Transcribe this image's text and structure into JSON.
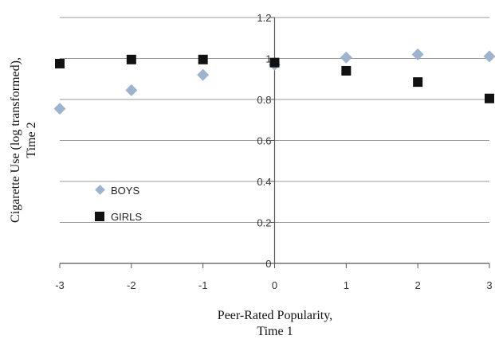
{
  "chart_data": {
    "type": "scatter",
    "xlabel": [
      "Peer-Rated Popularity,",
      "Time 1"
    ],
    "ylabel": [
      "Cigarette Use (log transformed),",
      "Time 2"
    ],
    "xlim": [
      -3,
      3
    ],
    "ylim": [
      0,
      1.2
    ],
    "xticks": [
      "-3",
      "-2",
      "-1",
      "0",
      "1",
      "2",
      "3"
    ],
    "yticks": [
      "0",
      "0.2",
      "0.4",
      "0.6",
      "0.8",
      "1",
      "1.2"
    ],
    "grid": "horizontal",
    "legend_position": "left-center",
    "series": [
      {
        "name": "BOYS",
        "marker": "diamond",
        "color": "#9DB3CE",
        "x": [
          -3,
          -2,
          -1,
          0,
          1,
          2,
          3
        ],
        "y": [
          0.755,
          0.845,
          0.92,
          0.97,
          1.005,
          1.02,
          1.01
        ]
      },
      {
        "name": "GIRLS",
        "marker": "square",
        "color": "#111111",
        "x": [
          -3,
          -2,
          -1,
          0,
          1,
          2,
          3
        ],
        "y": [
          0.975,
          0.995,
          0.995,
          0.98,
          0.94,
          0.885,
          0.805
        ]
      }
    ]
  }
}
